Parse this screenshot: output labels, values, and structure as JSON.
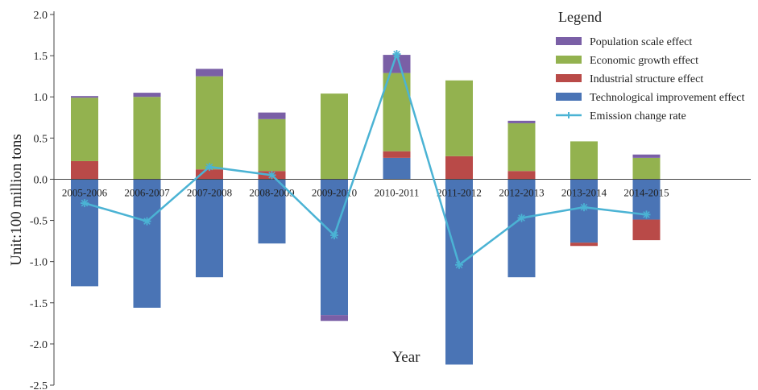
{
  "chart_data": {
    "type": "bar",
    "stacked": true,
    "categories": [
      "2005-2006",
      "2006-2007",
      "2007-2008",
      "2008-2009",
      "2009-2010",
      "2010-2011",
      "2011-2012",
      "2012-2013",
      "2013-2014",
      "2014-2015"
    ],
    "series": [
      {
        "name": "Technological improvement effect",
        "kind": "bar",
        "color": "#4a74b5",
        "values": [
          -1.3,
          -1.56,
          -1.19,
          -0.78,
          -1.65,
          0.26,
          -2.25,
          -1.19,
          -0.77,
          -0.49
        ]
      },
      {
        "name": "Industrial structure effect",
        "kind": "bar",
        "color": "#b94a48",
        "values": [
          0.22,
          0.0,
          0.12,
          0.1,
          0.0,
          0.08,
          0.28,
          0.1,
          -0.04,
          -0.25
        ]
      },
      {
        "name": "Economic growth effect",
        "kind": "bar",
        "color": "#93b24f",
        "values": [
          0.77,
          1.0,
          1.13,
          0.63,
          1.04,
          0.95,
          0.92,
          0.58,
          0.46,
          0.26
        ]
      },
      {
        "name": "Population scale effect",
        "kind": "bar",
        "color": "#7a5fa6",
        "values": [
          0.02,
          0.05,
          0.09,
          0.08,
          -0.07,
          0.22,
          0.0,
          0.03,
          0.0,
          0.04
        ]
      },
      {
        "name": "Emission change rate",
        "kind": "line",
        "color": "#4bb3d4",
        "values": [
          -0.29,
          -0.51,
          0.15,
          0.05,
          -0.68,
          1.52,
          -1.04,
          -0.47,
          -0.34,
          -0.43
        ]
      }
    ],
    "title": "",
    "xlabel": "Year",
    "ylabel": "Unit:100 million tons",
    "ylim": [
      -2.5,
      2.0
    ],
    "yticks": [
      "2.0",
      "1.5",
      "1.0",
      "0.5",
      "0.0",
      "-0.5",
      "-1.0",
      "-1.5",
      "-2.0",
      "-2.5"
    ],
    "legend": {
      "title": "Legend",
      "position": "top-right",
      "entries": [
        "Population scale effect",
        "Economic growth effect",
        "Industrial structure effect",
        "Technological improvement effect",
        "Emission change rate"
      ]
    },
    "grid": false
  }
}
